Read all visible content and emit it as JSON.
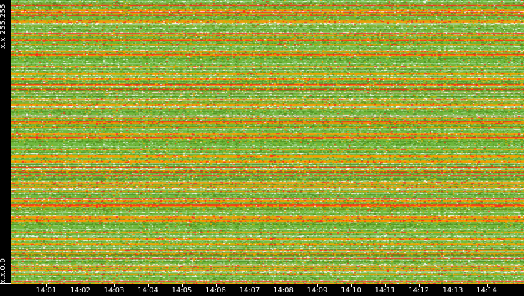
{
  "chart_data": {
    "type": "heatmap",
    "y_tick_labels": [
      "x.x.255.255",
      "x.x.0.0"
    ],
    "x_tick_labels": [
      "14:01",
      "14:02",
      "14:03",
      "14:04",
      "14:05",
      "14:06",
      "14:07",
      "14:08",
      "14:09",
      "14:10",
      "14:11",
      "14:12",
      "14:13",
      "14:14"
    ],
    "color_scale": [
      "#ffffff",
      "#9fd08a",
      "#6fb83a",
      "#4f8f1f",
      "#c8b400",
      "#ff9900",
      "#ff2a1a"
    ],
    "background": "#000000"
  }
}
